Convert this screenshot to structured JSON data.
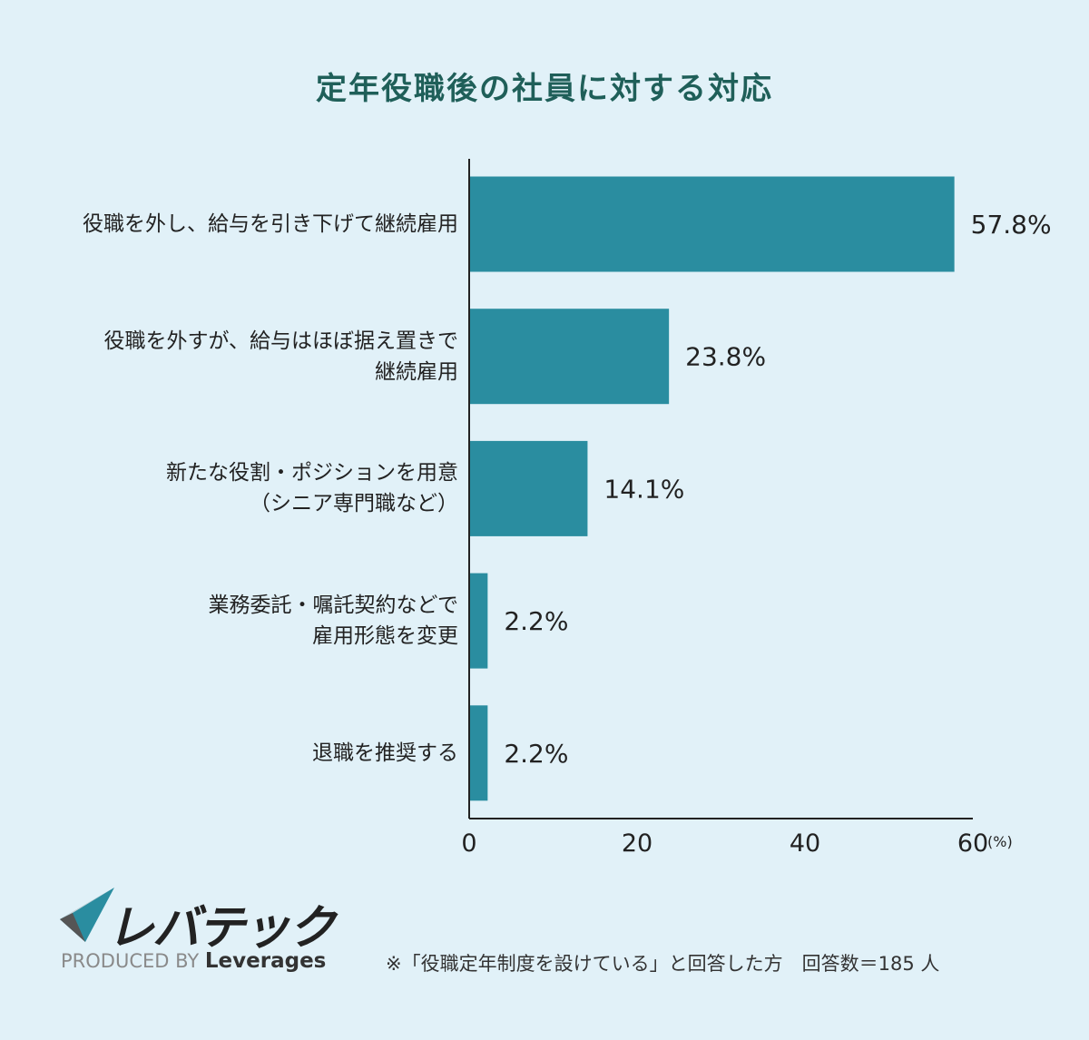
{
  "chart_data": {
    "type": "bar",
    "orientation": "horizontal",
    "title": "定年役職後の社員に対する対応",
    "categories": [
      "役職を外し、給与を引き下げて継続雇用",
      "役職を外すが、給与はほぼ据え置きで\n継続雇用",
      "新たな役割・ポジションを用意\n（シニア専門職など）",
      "業務委託・嘱託契約などで\n雇用形態を変更",
      "退職を推奨する"
    ],
    "values": [
      57.8,
      23.8,
      14.1,
      2.2,
      2.2
    ],
    "data_labels": [
      "57.8%",
      "23.8%",
      "14.1%",
      "2.2%",
      "2.2%"
    ],
    "xlim": [
      0,
      60
    ],
    "xticks": [
      "0",
      "20",
      "40",
      "60"
    ],
    "xunit": "(%)",
    "grid": false,
    "bar_color": "#2a8da0"
  },
  "branding": {
    "logo_text": "レバテック",
    "produced_by": "PRODUCED BY",
    "company": "Leverages"
  },
  "footnote": "※「役職定年制度を設けている」と回答した方　回答数＝185 人"
}
